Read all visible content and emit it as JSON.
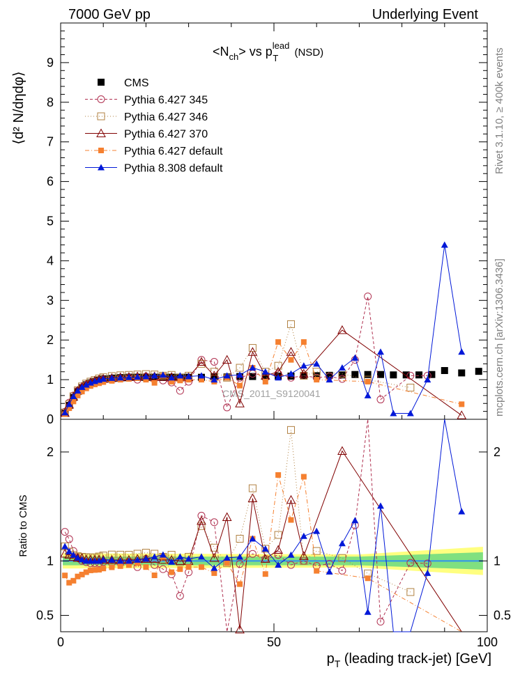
{
  "header": {
    "left": "7000 GeV pp",
    "right": "Underlying Event"
  },
  "side_labels": {
    "rivet": "Rivet 3.1.10, ≥ 400k events",
    "mcplots": "mcplots.cern.ch [arXiv:1306.3436]"
  },
  "watermark": "CMS_2011_S9120041",
  "title": {
    "prefix": "<N",
    "ch": "ch",
    "middle": "> vs p",
    "sup": "lead",
    "sub": "T",
    "suffix": " (NSD)"
  },
  "y_label_top": "⟨d² N/dηdφ⟩",
  "y_label_bottom": "Ratio to CMS",
  "x_label": "pₜ (leading track-jet) [GeV]",
  "x_label_parts": {
    "p": "p",
    "T": "T",
    "rest": " (leading track-jet) [GeV]"
  },
  "chart_data": {
    "type": "scatter",
    "x_range": [
      0,
      100
    ],
    "top_y_range": [
      0,
      10
    ],
    "ratio_y_range": [
      0.35,
      2.3
    ],
    "x_ticks": [
      0,
      50,
      100
    ],
    "top_y_ticks": [
      0,
      1,
      2,
      3,
      4,
      5,
      6,
      7,
      8,
      9
    ],
    "ratio_y_ticks": [
      0.5,
      1,
      2
    ],
    "legend_position": "top-left",
    "series": [
      {
        "name": "CMS",
        "color": "#000000",
        "marker": "square-filled",
        "line": "none",
        "x": [
          1,
          2,
          3,
          4,
          5,
          6,
          7,
          8,
          9,
          10,
          11,
          12,
          13,
          14,
          15,
          16,
          17,
          18,
          19,
          20,
          21,
          22,
          23,
          24,
          25,
          26,
          27,
          28,
          29,
          30,
          33,
          36,
          39,
          42,
          45,
          48,
          51,
          54,
          57,
          60,
          63,
          66,
          69,
          72,
          75,
          78,
          81,
          84,
          87,
          90,
          94,
          98
        ],
        "y": [
          0.15,
          0.35,
          0.55,
          0.7,
          0.8,
          0.87,
          0.92,
          0.96,
          0.99,
          1.01,
          1.02,
          1.03,
          1.04,
          1.05,
          1.05,
          1.06,
          1.06,
          1.06,
          1.06,
          1.06,
          1.06,
          1.06,
          1.06,
          1.06,
          1.06,
          1.06,
          1.06,
          1.06,
          1.06,
          1.06,
          1.06,
          1.07,
          1.07,
          1.08,
          1.08,
          1.08,
          1.09,
          1.09,
          1.1,
          1.1,
          1.11,
          1.12,
          1.13,
          1.13,
          1.13,
          1.12,
          1.12,
          1.12,
          1.13,
          1.23,
          1.17,
          1.21
        ]
      },
      {
        "name": "Pythia 6.427 345",
        "color": "#b03050",
        "marker": "circle-open",
        "line": "dashed",
        "x": [
          1,
          2,
          3,
          4,
          5,
          6,
          7,
          8,
          9,
          10,
          12,
          14,
          16,
          18,
          20,
          22,
          24,
          26,
          28,
          30,
          33,
          36,
          39,
          42,
          45,
          48,
          51,
          54,
          57,
          60,
          63,
          66,
          69,
          72,
          75,
          82,
          86
        ],
        "y": [
          0.19,
          0.42,
          0.6,
          0.72,
          0.8,
          0.86,
          0.9,
          0.94,
          0.97,
          1.0,
          1.01,
          1.03,
          1.05,
          1.0,
          1.08,
          1.02,
          0.98,
          0.93,
          0.72,
          0.95,
          1.5,
          1.45,
          0.3,
          1.05,
          1.15,
          1.1,
          1.15,
          1.05,
          1.1,
          1.05,
          1.08,
          1.02,
          1.5,
          3.1,
          0.5,
          1.1,
          1.1
        ]
      },
      {
        "name": "Pythia 6.427 346",
        "color": "#b08040",
        "marker": "square-open",
        "line": "dotted",
        "x": [
          1,
          2,
          3,
          4,
          5,
          6,
          7,
          8,
          9,
          10,
          12,
          14,
          16,
          18,
          20,
          22,
          24,
          26,
          28,
          30,
          33,
          36,
          39,
          42,
          45,
          48,
          51,
          54,
          57,
          60,
          66,
          72,
          82
        ],
        "y": [
          0.17,
          0.38,
          0.58,
          0.73,
          0.83,
          0.9,
          0.95,
          0.99,
          1.03,
          1.06,
          1.09,
          1.11,
          1.12,
          1.13,
          1.14,
          1.13,
          1.1,
          1.12,
          1.05,
          1.1,
          1.4,
          1.2,
          1.05,
          1.3,
          1.8,
          1.2,
          1.35,
          2.4,
          1.1,
          1.2,
          1.15,
          1.0,
          0.8
        ]
      },
      {
        "name": "Pythia 6.427 370",
        "color": "#800000",
        "marker": "triangle-open",
        "line": "solid",
        "x": [
          1,
          2,
          3,
          4,
          5,
          6,
          7,
          8,
          9,
          10,
          12,
          14,
          16,
          18,
          20,
          22,
          24,
          26,
          28,
          30,
          33,
          36,
          39,
          42,
          45,
          48,
          51,
          54,
          57,
          66,
          94
        ],
        "y": [
          0.16,
          0.37,
          0.57,
          0.72,
          0.82,
          0.88,
          0.93,
          0.97,
          1.0,
          1.02,
          1.04,
          1.06,
          1.07,
          1.08,
          1.08,
          1.08,
          1.07,
          1.07,
          1.06,
          1.06,
          1.45,
          1.1,
          1.5,
          0.4,
          1.7,
          1.1,
          1.2,
          1.7,
          1.15,
          2.25,
          0.1
        ]
      },
      {
        "name": "Pythia 6.427 default",
        "color": "#f58030",
        "marker": "square-filled-small",
        "line": "dashdot",
        "x": [
          1,
          2,
          3,
          4,
          5,
          6,
          7,
          8,
          9,
          10,
          12,
          14,
          16,
          18,
          20,
          22,
          24,
          26,
          28,
          30,
          33,
          36,
          39,
          42,
          45,
          48,
          51,
          54,
          57,
          60,
          72,
          94
        ],
        "y": [
          0.13,
          0.28,
          0.45,
          0.6,
          0.7,
          0.78,
          0.84,
          0.88,
          0.91,
          0.94,
          0.97,
          1.0,
          1.02,
          1.04,
          1.0,
          0.92,
          1.1,
          0.95,
          0.98,
          1.0,
          1.0,
          0.95,
          1.05,
          0.85,
          1.3,
          0.95,
          1.95,
          1.5,
          1.95,
          1.0,
          0.95,
          0.38
        ]
      },
      {
        "name": "Pythia 8.308 default",
        "color": "#0018d8",
        "marker": "triangle-filled",
        "line": "solid",
        "x": [
          1,
          2,
          3,
          4,
          5,
          6,
          7,
          8,
          9,
          10,
          12,
          14,
          16,
          18,
          20,
          22,
          24,
          26,
          28,
          30,
          33,
          36,
          39,
          42,
          45,
          48,
          51,
          54,
          57,
          60,
          63,
          66,
          69,
          72,
          75,
          78,
          82,
          86,
          90,
          94
        ],
        "y": [
          0.17,
          0.38,
          0.58,
          0.72,
          0.81,
          0.87,
          0.92,
          0.96,
          0.99,
          1.02,
          1.04,
          1.05,
          1.06,
          1.07,
          1.08,
          1.1,
          1.12,
          1.05,
          1.1,
          1.08,
          1.1,
          1.0,
          1.1,
          1.12,
          1.3,
          1.2,
          1.05,
          1.15,
          1.35,
          1.4,
          1.0,
          1.3,
          1.55,
          0.6,
          1.7,
          0.15,
          0.15,
          1.0,
          4.4,
          1.7
        ]
      }
    ]
  }
}
